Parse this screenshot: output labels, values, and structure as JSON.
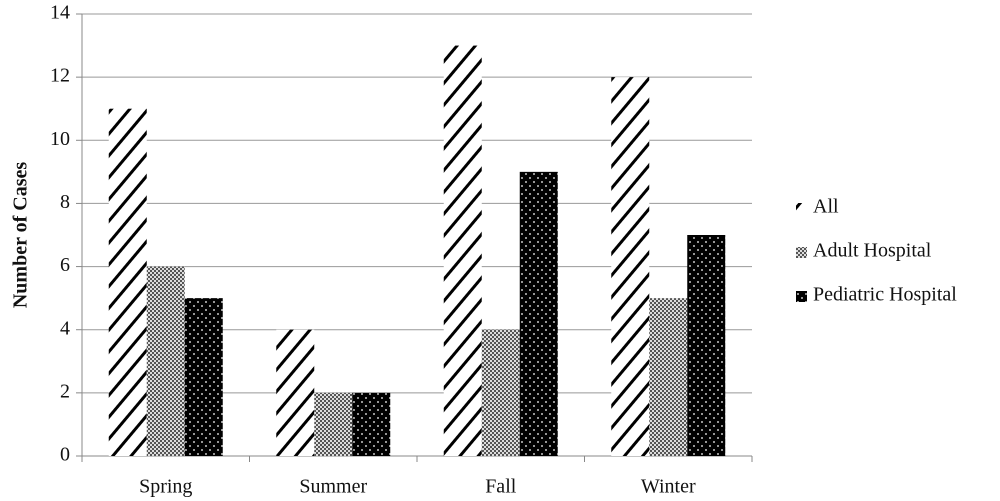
{
  "chart_data": {
    "type": "bar",
    "y_label": "Number of Cases",
    "categories": [
      "Spring",
      "Summer",
      "Fall",
      "Winter"
    ],
    "series": [
      {
        "name": "All",
        "color": "#000000",
        "values": [
          11,
          4,
          13,
          12
        ]
      },
      {
        "name": "Adult Hospital",
        "color": "#555555",
        "values": [
          6,
          2,
          4,
          5
        ]
      },
      {
        "name": "Pediatric Hospital",
        "color": "#000000",
        "values": [
          5,
          2,
          9,
          7
        ]
      }
    ],
    "ylim": [
      0,
      14
    ],
    "yticks": [
      0,
      2,
      4,
      6,
      8,
      10,
      12,
      14
    ],
    "grid": true,
    "legend": "right"
  }
}
